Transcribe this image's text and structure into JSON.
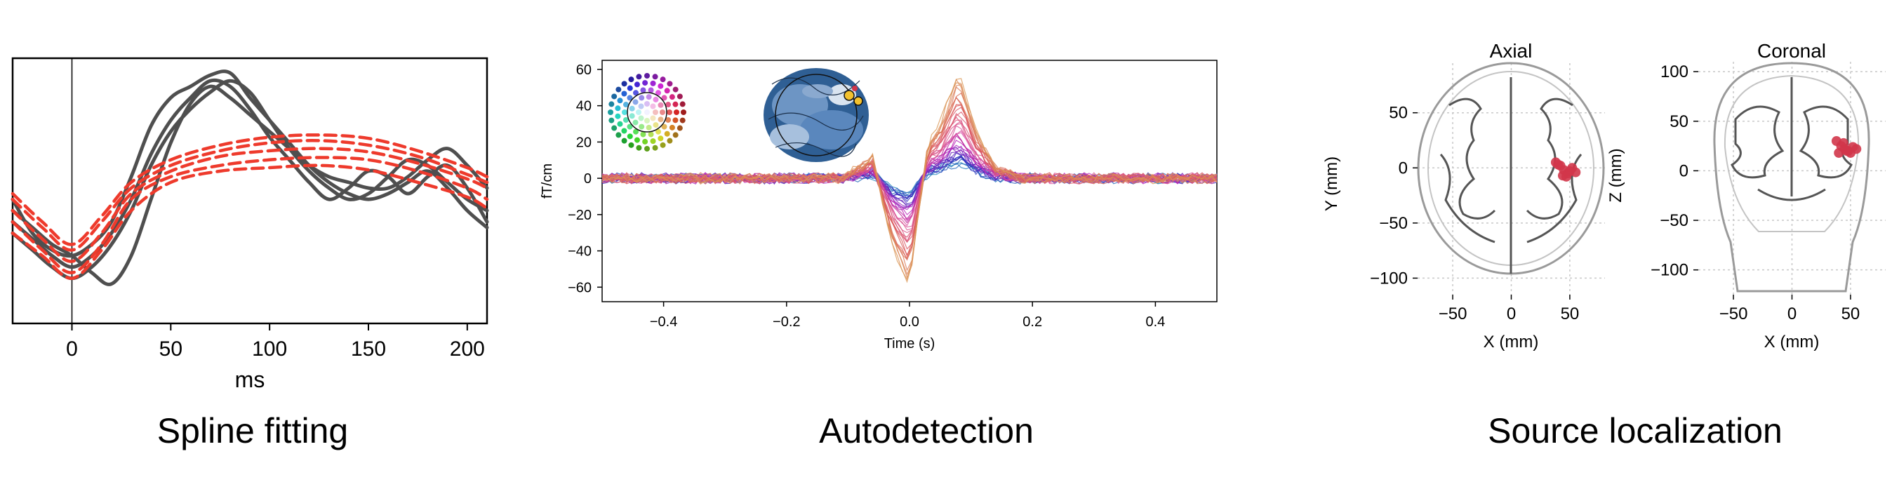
{
  "captions": {
    "spline": "Spline fitting",
    "auto": "Autodetection",
    "source": "Source localization"
  },
  "colors": {
    "measured": "#4f4f4f",
    "fitted": "#ee3a2c",
    "topo_blue": "#2f5f94",
    "dipole": "#d1364a"
  },
  "chart_data": [
    {
      "id": "spline",
      "type": "line",
      "title": "",
      "xlabel": "ms",
      "ylabel": "",
      "xlim": [
        -30,
        210
      ],
      "ylim": [
        -1.2,
        1.15
      ],
      "xticks": [
        0,
        50,
        100,
        150,
        200
      ],
      "vline_x": 0,
      "series": [
        {
          "style": "measured",
          "x": [
            -30,
            -20,
            -10,
            0,
            10,
            20,
            30,
            40,
            50,
            60,
            70,
            80,
            90,
            100,
            110,
            120,
            130,
            140,
            150,
            160,
            170,
            180,
            190,
            200,
            210
          ],
          "values": [
            -0.1,
            -0.4,
            -0.55,
            -0.6,
            -0.5,
            -0.3,
            0.1,
            0.55,
            0.8,
            0.9,
            1.0,
            1.02,
            0.8,
            0.6,
            0.4,
            0.2,
            0.05,
            -0.05,
            -0.1,
            -0.05,
            0.05,
            0.15,
            0.0,
            -0.2,
            -0.35
          ]
        },
        {
          "style": "measured",
          "x": [
            -30,
            -20,
            -10,
            0,
            10,
            20,
            30,
            40,
            50,
            60,
            70,
            80,
            90,
            100,
            110,
            120,
            130,
            140,
            150,
            160,
            170,
            180,
            190,
            200,
            210
          ],
          "values": [
            -0.3,
            -0.45,
            -0.6,
            -0.7,
            -0.6,
            -0.4,
            -0.1,
            0.3,
            0.6,
            0.8,
            0.95,
            0.9,
            0.7,
            0.45,
            0.25,
            0.05,
            -0.1,
            0.0,
            0.15,
            0.1,
            -0.05,
            0.1,
            0.2,
            0.0,
            -0.3
          ]
        },
        {
          "style": "measured",
          "x": [
            -30,
            -20,
            -10,
            0,
            10,
            20,
            30,
            40,
            50,
            60,
            70,
            80,
            90,
            100,
            110,
            120,
            130,
            140,
            150,
            160,
            170,
            180,
            190,
            200,
            210
          ],
          "values": [
            -0.4,
            -0.55,
            -0.7,
            -0.8,
            -0.7,
            -0.5,
            -0.2,
            0.2,
            0.5,
            0.7,
            0.85,
            0.95,
            0.85,
            0.6,
            0.35,
            0.15,
            0.0,
            -0.1,
            -0.05,
            0.1,
            0.25,
            0.2,
            0.05,
            -0.1,
            -0.2
          ]
        },
        {
          "style": "measured",
          "x": [
            -30,
            -20,
            -10,
            0,
            10,
            20,
            30,
            40,
            50,
            60,
            70,
            80,
            90,
            100,
            110,
            120,
            130,
            140,
            150,
            160,
            170,
            180,
            190,
            200,
            210
          ],
          "values": [
            -0.2,
            -0.35,
            -0.5,
            -0.6,
            -0.75,
            -0.85,
            -0.6,
            -0.1,
            0.4,
            0.75,
            0.9,
            0.8,
            0.65,
            0.5,
            0.35,
            0.2,
            0.1,
            0.05,
            0.0,
            0.0,
            0.1,
            0.25,
            0.35,
            0.2,
            0.0
          ]
        },
        {
          "style": "fitted",
          "x": [
            -30,
            -15,
            0,
            15,
            30,
            50,
            75,
            100,
            125,
            150,
            175,
            200,
            210
          ],
          "values": [
            -0.3,
            -0.55,
            -0.75,
            -0.5,
            -0.1,
            0.1,
            0.2,
            0.25,
            0.27,
            0.25,
            0.15,
            0.0,
            -0.1
          ]
        },
        {
          "style": "fitted",
          "x": [
            -30,
            -15,
            0,
            15,
            30,
            50,
            75,
            100,
            125,
            150,
            175,
            200,
            210
          ],
          "values": [
            -0.2,
            -0.45,
            -0.65,
            -0.4,
            -0.05,
            0.15,
            0.28,
            0.33,
            0.35,
            0.32,
            0.22,
            0.08,
            0.0
          ]
        },
        {
          "style": "fitted",
          "x": [
            -30,
            -15,
            0,
            15,
            30,
            50,
            75,
            100,
            125,
            150,
            175,
            200,
            210
          ],
          "values": [
            -0.1,
            -0.35,
            -0.55,
            -0.3,
            0.0,
            0.2,
            0.33,
            0.4,
            0.42,
            0.38,
            0.28,
            0.12,
            0.05
          ]
        },
        {
          "style": "fitted",
          "x": [
            -30,
            -15,
            0,
            15,
            30,
            50,
            75,
            100,
            125,
            150,
            175,
            200,
            210
          ],
          "values": [
            -0.4,
            -0.6,
            -0.8,
            -0.55,
            -0.2,
            0.05,
            0.15,
            0.18,
            0.2,
            0.16,
            0.05,
            -0.08,
            -0.18
          ]
        },
        {
          "style": "fitted",
          "x": [
            -30,
            -15,
            0,
            15,
            30,
            50,
            75,
            100,
            125,
            150,
            175,
            200,
            210
          ],
          "values": [
            -0.05,
            -0.3,
            -0.5,
            -0.25,
            0.05,
            0.25,
            0.38,
            0.45,
            0.47,
            0.44,
            0.33,
            0.18,
            0.1
          ]
        }
      ]
    },
    {
      "id": "auto",
      "type": "line",
      "title": "",
      "xlabel": "Time (s)",
      "ylabel": "fT/cm",
      "xlim": [
        -0.5,
        0.5
      ],
      "ylim": [
        -68,
        65
      ],
      "xticks": [
        -0.4,
        -0.2,
        0.0,
        0.2,
        0.4
      ],
      "yticks": [
        -60,
        -40,
        -20,
        0,
        20,
        40,
        60
      ],
      "channel_count": 40,
      "peak_envelope": {
        "t": [
          -0.1,
          -0.06,
          -0.03,
          0.0,
          0.03,
          0.05,
          0.08,
          0.11,
          0.14,
          0.18
        ],
        "amp": [
          2,
          12,
          -35,
          -60,
          20,
          30,
          60,
          25,
          6,
          1
        ]
      }
    },
    {
      "id": "axial",
      "type": "scatter",
      "title": "Axial",
      "xlabel": "X (mm)",
      "ylabel": "Y (mm)",
      "xlim": [
        -80,
        80
      ],
      "ylim": [
        -115,
        95
      ],
      "xticks": [
        -50,
        0,
        50
      ],
      "yticks": [
        50,
        0,
        -50,
        -100
      ],
      "points": {
        "x": [
          38,
          42,
          45,
          48,
          50,
          52,
          44,
          47,
          55,
          40
        ],
        "y": [
          5,
          2,
          -2,
          -5,
          -3,
          0,
          -7,
          -8,
          -4,
          3
        ]
      }
    },
    {
      "id": "coronal",
      "type": "scatter",
      "title": "Coronal",
      "xlabel": "X (mm)",
      "ylabel": "Z (mm)",
      "xlim": [
        -80,
        80
      ],
      "ylim": [
        -125,
        110
      ],
      "xticks": [
        -50,
        0,
        50
      ],
      "yticks": [
        100,
        50,
        0,
        -50,
        -100
      ],
      "points": {
        "x": [
          38,
          42,
          45,
          48,
          50,
          52,
          44,
          47,
          55,
          40
        ],
        "y": [
          30,
          25,
          22,
          20,
          18,
          24,
          28,
          20,
          22,
          18
        ]
      }
    }
  ]
}
